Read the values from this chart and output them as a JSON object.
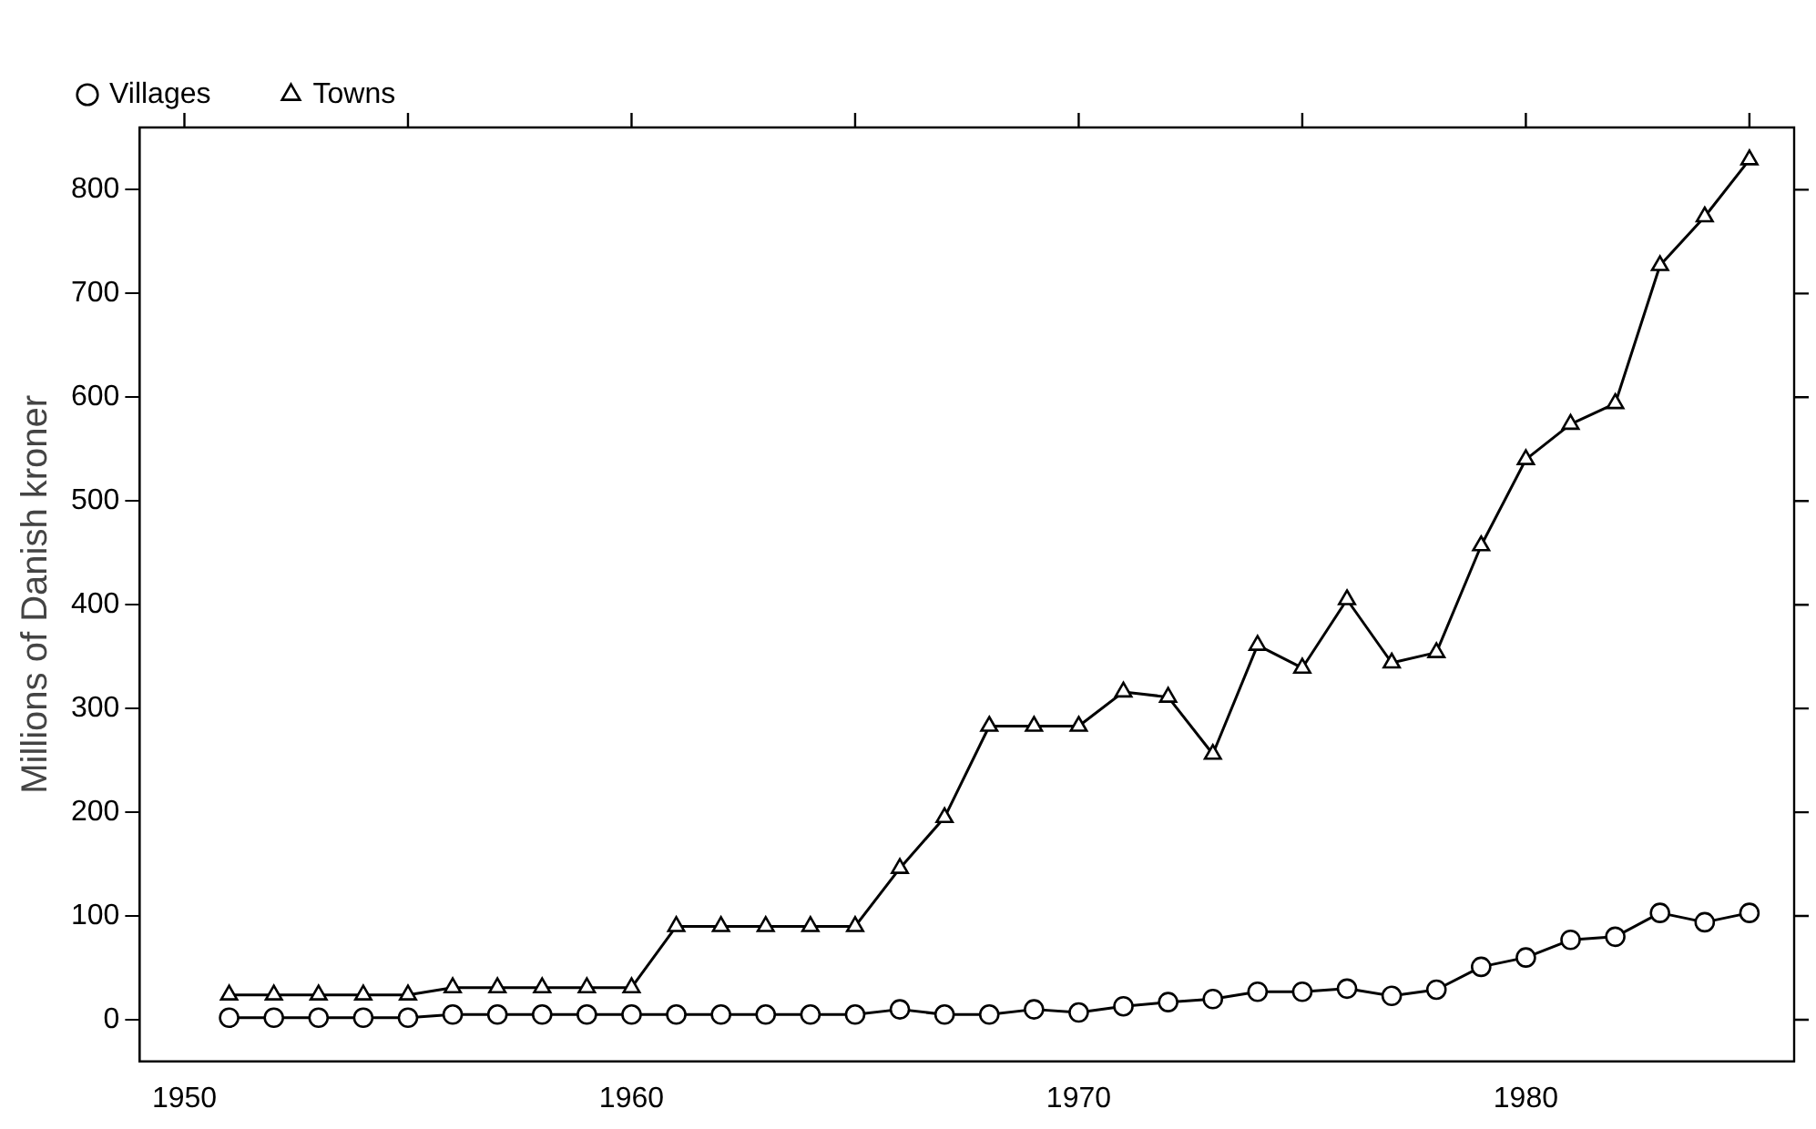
{
  "chart_data": {
    "type": "line",
    "ylabel": "Millions of Danish kroner",
    "x": [
      1951,
      1952,
      1953,
      1954,
      1955,
      1956,
      1957,
      1958,
      1959,
      1960,
      1961,
      1962,
      1963,
      1964,
      1965,
      1966,
      1967,
      1968,
      1969,
      1970,
      1971,
      1972,
      1973,
      1974,
      1975,
      1976,
      1977,
      1978,
      1979,
      1980,
      1981,
      1982,
      1983,
      1984,
      1985
    ],
    "series": [
      {
        "name": "Villages",
        "color": "#000000",
        "marker": "circle",
        "values": [
          2,
          2,
          2,
          2,
          2,
          5,
          5,
          5,
          5,
          5,
          5,
          5,
          5,
          5,
          5,
          10,
          5,
          5,
          10,
          7,
          13,
          17,
          20,
          27,
          27,
          30,
          23,
          29,
          51,
          60,
          77,
          80,
          103,
          94,
          103
        ]
      },
      {
        "name": "Towns",
        "color": "#000000",
        "marker": "triangle",
        "values": [
          24,
          24,
          24,
          24,
          24,
          31,
          31,
          31,
          31,
          31,
          90,
          90,
          90,
          90,
          90,
          146,
          195,
          283,
          283,
          283,
          316,
          311,
          256,
          361,
          339,
          405,
          344,
          354,
          457,
          540,
          574,
          594,
          727,
          774,
          829
        ]
      }
    ],
    "xlim": [
      1949,
      1986
    ],
    "xticks": [
      1950,
      1960,
      1970,
      1980
    ],
    "ylim": [
      -40,
      860
    ],
    "yticks": [
      0,
      100,
      200,
      300,
      400,
      500,
      600,
      700,
      800
    ],
    "grid": false,
    "legend": "top",
    "line_style": "solid"
  }
}
